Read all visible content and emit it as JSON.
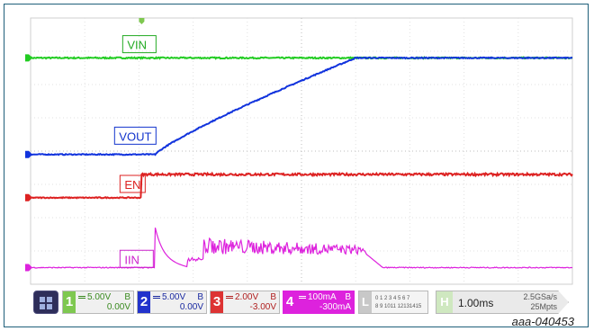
{
  "chart_data": {
    "type": "line",
    "title": "",
    "xlabel": "",
    "ylabel": "",
    "time_per_div": "1.00ms",
    "x_divisions": 10,
    "y_divisions": 8,
    "grid": true,
    "series": [
      {
        "name": "VIN",
        "color": "#22cc22",
        "label_color": "#22aa22",
        "trace": "flat",
        "level_div": 6.8
      },
      {
        "name": "VOUT",
        "color": "#1133dd",
        "label_color": "#1133cc",
        "trace": "ramp",
        "level_div": 3.9,
        "ramp_start_div": 2.3,
        "ramp_end_div": 6.0,
        "final_div": 6.8
      },
      {
        "name": "EN",
        "color": "#dd2222",
        "label_color": "#dd2222",
        "trace": "step",
        "level_div": 2.6,
        "step_div": 2.05,
        "high_div": 3.3
      },
      {
        "name": "IIN",
        "color": "#dd22dd",
        "label_color": "#cc22cc",
        "trace": "pulses",
        "level_div": 0.5,
        "spike_div": 2.3,
        "spike_peak_div": 1.5,
        "burst_start_div": 3.2,
        "burst_end_div": 6.2,
        "burst_level_div": 0.9,
        "burst_peak_div": 1.4
      }
    ]
  },
  "channels": [
    {
      "num": "1",
      "scale": "5.00V",
      "bw": "B",
      "offset": "0.00V",
      "color": "#7ec850",
      "text_color": "#3a8a20"
    },
    {
      "num": "2",
      "scale": "5.00V",
      "bw": "B",
      "offset": "0.00V",
      "color": "#2233cc",
      "text_color": "#1a2aa0"
    },
    {
      "num": "3",
      "scale": "2.00V",
      "bw": "B",
      "offset": "-3.00V",
      "color": "#dd3333",
      "text_color": "#b02020"
    },
    {
      "num": "4",
      "scale": "100mA",
      "bw": "B",
      "offset": "-300mA",
      "color": "#dd22dd",
      "text_color": "#ffffff"
    }
  ],
  "logic": {
    "label": "L",
    "row1": "0 1 2 3  4 5 6 7",
    "row2": "8 9 1011 12131415"
  },
  "timebase": {
    "label": "H",
    "time_per_div": "1.00ms",
    "sample_rate": "2.5GSa/s",
    "memory": "25Mpts"
  },
  "caption": "aaa-040453"
}
